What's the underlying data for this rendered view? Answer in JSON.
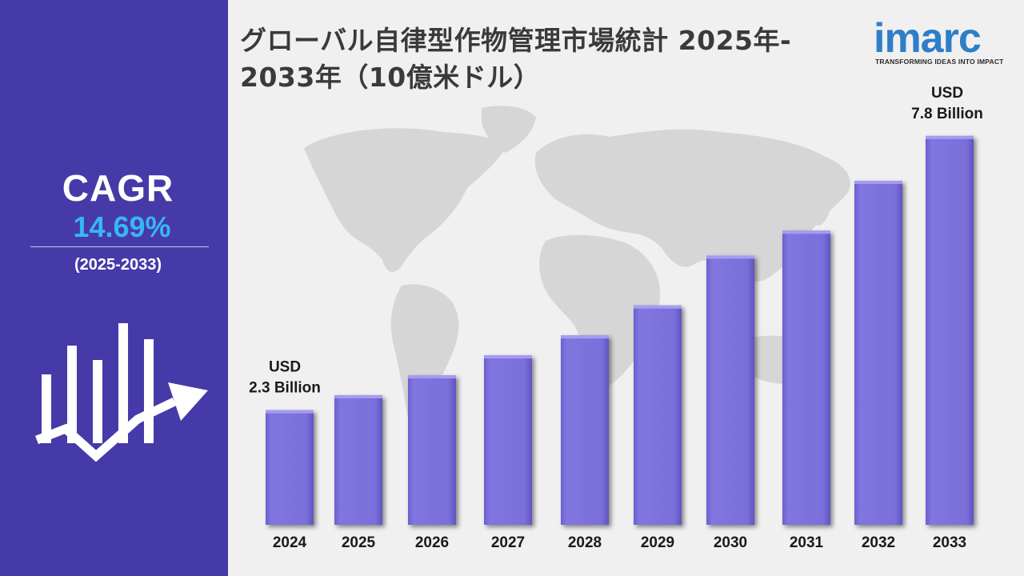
{
  "sidebar": {
    "cagr_title": "CAGR",
    "cagr_value": "14.69%",
    "cagr_period": "(2025-2033)",
    "icon": "growth-chart-arrow-icon"
  },
  "header": {
    "title_line1": "グローバル自律型作物管理市場統計 2025年-",
    "title_line2": "2033年（10億米ドル）"
  },
  "logo": {
    "text": "imarc",
    "tagline": "TRANSFORMING IDEAS INTO IMPACT"
  },
  "colors": {
    "sidebar": "#463aa8",
    "bar": "#7b6fdb",
    "accent": "#38b6f1",
    "logo": "#2f7ec8"
  },
  "chart_data": {
    "type": "bar",
    "categories": [
      "2024",
      "2025",
      "2026",
      "2027",
      "2028",
      "2029",
      "2030",
      "2031",
      "2032",
      "2033"
    ],
    "values": [
      2.3,
      2.6,
      3.0,
      3.4,
      3.8,
      4.4,
      5.4,
      5.9,
      6.9,
      7.8
    ],
    "unit": "USD Billion",
    "annotations": [
      {
        "category": "2024",
        "line1": "USD",
        "line2": "2.3 Billion"
      },
      {
        "category": "2033",
        "line1": "USD",
        "line2": "7.8 Billion"
      }
    ],
    "ylim": [
      0,
      8.6
    ],
    "grid": false,
    "legend": "none"
  }
}
